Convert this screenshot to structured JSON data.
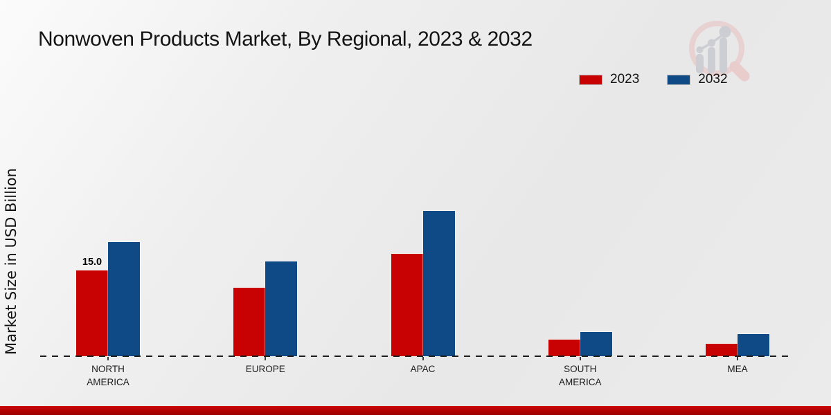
{
  "page": {
    "title": "Nonwoven Products Market, By Regional, 2023 & 2032"
  },
  "ylabel": "Market Size in USD Billion",
  "legend": {
    "items": [
      {
        "label": "2023",
        "color": "#c80202"
      },
      {
        "label": "2032",
        "color": "#0f4a86"
      }
    ]
  },
  "colors": {
    "series_2023_red": "#c80202",
    "series_2032_blue": "#0f4a86",
    "footer_bar_red": "#b00202"
  },
  "logo": {
    "icon": "magnifier-growth-chart-watermark"
  },
  "chart_data": {
    "type": "bar",
    "title": "Nonwoven Products Market, By Regional, 2023 & 2032",
    "ylabel": "Market Size in USD Billion",
    "categories": [
      "NORTH AMERICA",
      "EUROPE",
      "APAC",
      "SOUTH AMERICA",
      "MEA"
    ],
    "category_lines": [
      [
        "NORTH",
        "AMERICA"
      ],
      [
        "EUROPE"
      ],
      [
        "APAC"
      ],
      [
        "SOUTH",
        "AMERICA"
      ],
      [
        "MEA"
      ]
    ],
    "series": [
      {
        "name": "2023",
        "color": "#c80202",
        "values": [
          15.0,
          12.0,
          17.9,
          2.9,
          2.2
        ]
      },
      {
        "name": "2032",
        "color": "#0f4a86",
        "values": [
          20.0,
          16.6,
          25.4,
          4.3,
          3.9
        ]
      }
    ],
    "annotations": [
      {
        "series_index": 0,
        "category_index": 0,
        "text": "15.0"
      }
    ],
    "ylim": [
      0,
      30
    ],
    "grid": false,
    "axis_line": "dashed-baseline-only",
    "legend_position": "top-right"
  }
}
